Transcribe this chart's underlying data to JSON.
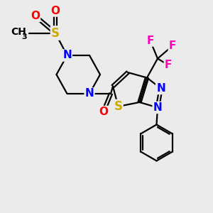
{
  "background_color": "#ebebeb",
  "bond_color": "#000000",
  "atom_colors": {
    "N": "#0000ff",
    "S": "#ccaa00",
    "O": "#ff0000",
    "F": "#ff00bb",
    "C": "#000000"
  },
  "lw": 1.6,
  "fontsize": 11
}
